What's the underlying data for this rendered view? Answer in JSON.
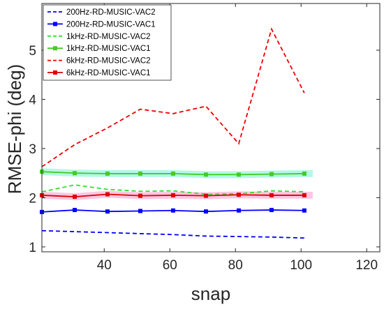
{
  "chart_data": {
    "type": "line",
    "xlabel": "snap",
    "ylabel": "RMSE-phi (deg)",
    "xlim": [
      21,
      124
    ],
    "ylim": [
      0.9,
      5.95
    ],
    "xticks": [
      40,
      60,
      80,
      100,
      120
    ],
    "yticks": [
      1,
      2,
      3,
      4,
      5
    ],
    "grid": false,
    "legend_position": "top-left",
    "series": [
      {
        "name": "200Hz-RD-MUSIC-VAC2",
        "color": "#0000ff",
        "dash": true,
        "marker": false,
        "band": null,
        "x": [
          21,
          31,
          41,
          51,
          61,
          71,
          81,
          91,
          101
        ],
        "y": [
          1.33,
          1.31,
          1.29,
          1.27,
          1.25,
          1.22,
          1.21,
          1.2,
          1.18
        ]
      },
      {
        "name": "200Hz-RD-MUSIC-VAC1",
        "color": "#0000ff",
        "dash": false,
        "marker": true,
        "band": null,
        "x": [
          21,
          31,
          41,
          51,
          61,
          71,
          81,
          91,
          101
        ],
        "y": [
          1.71,
          1.75,
          1.72,
          1.73,
          1.74,
          1.72,
          1.74,
          1.75,
          1.74
        ]
      },
      {
        "name": "1kHz-RD-MUSIC-VAC2",
        "color": "#33dd33",
        "dash": true,
        "marker": false,
        "band": null,
        "x": [
          21,
          31,
          41,
          51,
          61,
          71,
          81,
          91,
          101
        ],
        "y": [
          2.12,
          2.26,
          2.17,
          2.13,
          2.14,
          2.07,
          2.08,
          2.14,
          2.12
        ]
      },
      {
        "name": "1kHz-RD-MUSIC-VAC1",
        "color": "#44cc22",
        "dash": false,
        "marker": true,
        "band": "#99f5dd",
        "x": [
          21,
          31,
          41,
          51,
          61,
          71,
          81,
          91,
          101
        ],
        "y": [
          2.53,
          2.5,
          2.49,
          2.49,
          2.49,
          2.47,
          2.47,
          2.48,
          2.49
        ]
      },
      {
        "name": "6kHz-RD-MUSIC-VAC2",
        "color": "#ee0000",
        "dash": true,
        "marker": false,
        "band": null,
        "x": [
          21,
          31,
          41,
          51,
          61,
          71,
          81,
          91,
          101
        ],
        "y": [
          2.63,
          3.08,
          3.42,
          3.8,
          3.71,
          3.86,
          3.1,
          5.43,
          4.13
        ]
      },
      {
        "name": "6kHz-RD-MUSIC-VAC1",
        "color": "#dd0000",
        "dash": false,
        "marker": true,
        "band": "#ffb3d9",
        "x": [
          21,
          31,
          41,
          51,
          61,
          71,
          81,
          91,
          101
        ],
        "y": [
          2.05,
          2.02,
          2.07,
          2.04,
          2.05,
          2.04,
          2.06,
          2.05,
          2.05
        ]
      }
    ]
  }
}
